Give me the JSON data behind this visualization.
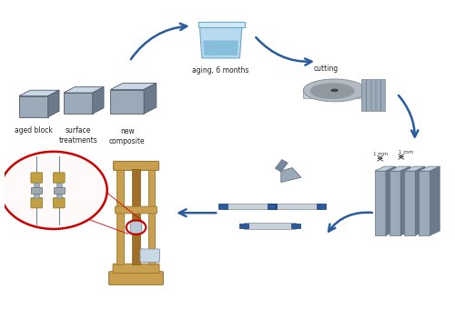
{
  "bg_color": "#ffffff",
  "arrow_color": "#2a5b9e",
  "red_color": "#cc0000",
  "cube_front": "#9aaab8",
  "cube_top": "#c8d8e4",
  "cube_side": "#6a7a8a",
  "jar_body": "#b8daf0",
  "jar_water": "#7ab8d8",
  "jar_rim": "#d0eaf8",
  "disc_face": "#8898a8",
  "disc_edge": "#b0c0cc",
  "disc_dark": "#505860",
  "slab_front": "#9aaab8",
  "slab_top": "#c0d0dc",
  "slab_side": "#6a7a8a",
  "gold_machine": "#c8a050",
  "gold_dark": "#9a7830",
  "labels": {
    "aged_block": "aged block",
    "surface_treatments": "surface\ntreatments",
    "new_composite": "new\ncomposite",
    "aging": "aging, 6 months",
    "cutting": "cutting",
    "dim1": "1 mm",
    "dim2": "1 mm"
  },
  "figsize": [
    5.0,
    3.62
  ],
  "dpi": 100
}
